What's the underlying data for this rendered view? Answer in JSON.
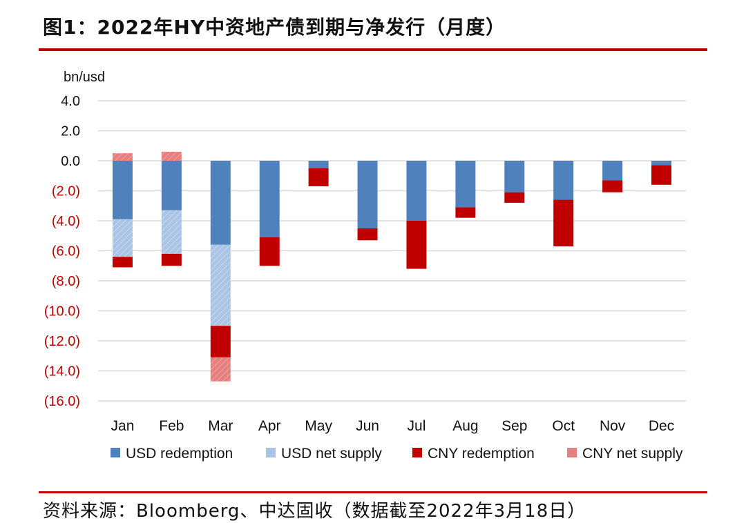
{
  "header": {
    "title": "图1：2022年HY中资地产债到期与净发行（月度）"
  },
  "footer": {
    "source": "资料来源：Bloomberg、中达固收（数据截至2022年3月18日）"
  },
  "colors": {
    "accent_rule": "#c00000",
    "usd_redemption": "#4f81bd",
    "usd_net_supply": "#a9c4e4",
    "cny_redemption": "#c00000",
    "cny_net_supply": "#e6807f",
    "negative_tick": "#c00000",
    "positive_tick": "#111111"
  },
  "chart_data": {
    "type": "bar",
    "stacked": true,
    "unit_label": "bn/usd",
    "categories": [
      "Jan",
      "Feb",
      "Mar",
      "Apr",
      "May",
      "Jun",
      "Jul",
      "Aug",
      "Sep",
      "Oct",
      "Nov",
      "Dec"
    ],
    "ylim": [
      -16,
      4
    ],
    "yticks": [
      4,
      2,
      0,
      -2,
      -4,
      -6,
      -8,
      -10,
      -12,
      -14,
      -16
    ],
    "ytick_labels": [
      "4.0",
      "2.0",
      "0.0",
      "(2.0)",
      "(4.0)",
      "(6.0)",
      "(8.0)",
      "(10.0)",
      "(12.0)",
      "(14.0)",
      "(16.0)"
    ],
    "grid": true,
    "legend_position": "bottom",
    "series": [
      {
        "name": "USD redemption",
        "values": [
          -3.9,
          -3.3,
          -5.6,
          -5.1,
          -0.5,
          -4.5,
          -4.0,
          -3.1,
          -2.1,
          -2.6,
          -1.3,
          -0.3
        ]
      },
      {
        "name": "USD net supply",
        "values": [
          -2.5,
          -2.9,
          -5.4,
          0,
          0,
          0,
          0,
          0,
          0,
          0,
          0,
          0
        ]
      },
      {
        "name": "CNY redemption",
        "values": [
          -0.7,
          -0.8,
          -2.1,
          -1.9,
          -1.2,
          -0.8,
          -3.2,
          -0.7,
          -0.7,
          -3.1,
          -0.8,
          -1.3
        ]
      },
      {
        "name": "CNY net supply",
        "values": [
          0.5,
          0.6,
          -1.6,
          0,
          0,
          0,
          0,
          0,
          0,
          0,
          0,
          0
        ]
      }
    ]
  }
}
